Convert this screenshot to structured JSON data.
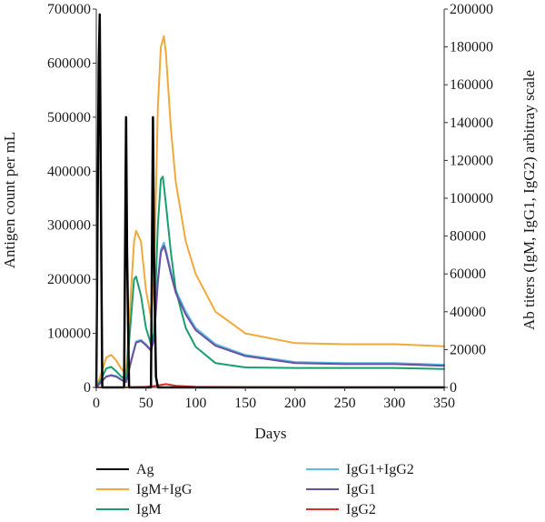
{
  "chart_data": {
    "type": "line",
    "title": "",
    "xlabel": "Days",
    "ylabel_left": "Antigen count per mL",
    "ylabel_right": "Ab titers (IgM, IgG1, IgG2) arbitray scale",
    "xlim": [
      0,
      350
    ],
    "ylim_left": [
      0,
      700000
    ],
    "ylim_right": [
      0,
      200000
    ],
    "x_ticks": [
      "0",
      "50",
      "100",
      "150",
      "200",
      "250",
      "300",
      "350"
    ],
    "y_left_ticks": [
      "0",
      "100000",
      "200000",
      "300000",
      "400000",
      "500000",
      "600000",
      "700000"
    ],
    "y_right_ticks": [
      "0",
      "20000",
      "40000",
      "60000",
      "80000",
      "100000",
      "120000",
      "140000",
      "160000",
      "180000",
      "200000"
    ],
    "grid": false,
    "legend_position": "bottom",
    "series": [
      {
        "name": "Ag",
        "axis": "left",
        "color": "#000000",
        "x": [
          0,
          2.5,
          3.5,
          5,
          6,
          28,
          29,
          30,
          31,
          33,
          55,
          56,
          57,
          58,
          60,
          62,
          350
        ],
        "y": [
          0,
          600000,
          690000,
          250000,
          0,
          0,
          250000,
          500000,
          250000,
          0,
          0,
          250000,
          500000,
          250000,
          20000,
          0,
          0
        ]
      },
      {
        "name": "IgM+IgG",
        "axis": "left",
        "color": "#f2a93b",
        "x": [
          0,
          5,
          10,
          15,
          20,
          25,
          30,
          35,
          38,
          40,
          45,
          50,
          55,
          58,
          62,
          65,
          68,
          70,
          75,
          80,
          90,
          100,
          120,
          150,
          200,
          250,
          300,
          350
        ],
        "y": [
          0,
          25000,
          55000,
          60000,
          50000,
          35000,
          25000,
          180000,
          270000,
          290000,
          270000,
          180000,
          130000,
          200000,
          520000,
          630000,
          650000,
          620000,
          480000,
          380000,
          270000,
          210000,
          140000,
          100000,
          82000,
          80000,
          80000,
          76000
        ]
      },
      {
        "name": "IgM",
        "axis": "left",
        "color": "#1a9e6e",
        "x": [
          0,
          5,
          10,
          15,
          20,
          25,
          30,
          35,
          38,
          40,
          45,
          50,
          55,
          58,
          62,
          65,
          67,
          70,
          75,
          80,
          90,
          100,
          120,
          150,
          200,
          250,
          300,
          350
        ],
        "y": [
          0,
          15000,
          35000,
          38000,
          30000,
          20000,
          15000,
          130000,
          200000,
          205000,
          170000,
          110000,
          80000,
          100000,
          300000,
          385000,
          390000,
          340000,
          250000,
          180000,
          110000,
          75000,
          45000,
          37000,
          36000,
          36000,
          36000,
          34000
        ]
      },
      {
        "name": "IgG1+IgG2",
        "axis": "left",
        "color": "#5bbce4",
        "x": [
          0,
          5,
          10,
          15,
          20,
          25,
          30,
          35,
          40,
          45,
          50,
          55,
          58,
          62,
          65,
          68,
          70,
          75,
          80,
          90,
          100,
          120,
          150,
          200,
          250,
          300,
          350
        ],
        "y": [
          0,
          10000,
          20000,
          23000,
          21000,
          15000,
          10000,
          50000,
          85000,
          88000,
          80000,
          70000,
          90000,
          200000,
          255000,
          268000,
          255000,
          215000,
          180000,
          140000,
          110000,
          80000,
          60000,
          47000,
          45000,
          45000,
          42000
        ]
      },
      {
        "name": "IgG1",
        "axis": "left",
        "color": "#6a4fa3",
        "x": [
          0,
          5,
          10,
          15,
          20,
          25,
          30,
          35,
          40,
          45,
          50,
          55,
          58,
          62,
          65,
          68,
          70,
          75,
          80,
          90,
          100,
          120,
          150,
          200,
          250,
          300,
          350
        ],
        "y": [
          0,
          10000,
          20000,
          22000,
          20000,
          14000,
          10000,
          48000,
          83000,
          86000,
          78000,
          68000,
          88000,
          195000,
          250000,
          262000,
          250000,
          210000,
          175000,
          135000,
          106000,
          77000,
          58000,
          45000,
          43000,
          43000,
          40000
        ]
      },
      {
        "name": "IgG2",
        "axis": "left",
        "color": "#d9302c",
        "x": [
          0,
          30,
          50,
          60,
          70,
          80,
          100,
          150,
          350
        ],
        "y": [
          0,
          0,
          1000,
          3000,
          6000,
          3000,
          1000,
          500,
          0
        ]
      }
    ]
  }
}
